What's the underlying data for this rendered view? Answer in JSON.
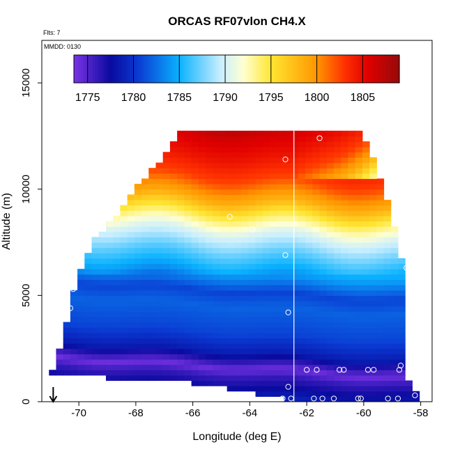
{
  "chart_data": {
    "type": "heatmap",
    "title": "ORCAS RF07vlon CH4.X",
    "annotations": {
      "flights": "Flts: 7",
      "date": "MMDD: 0130"
    },
    "xlabel": "Longitude (deg E)",
    "ylabel": "Altitude (m)",
    "xlim": [
      -71.3,
      -57.6
    ],
    "ylim": [
      0,
      17000
    ],
    "x_ticks": [
      -70,
      -68,
      -66,
      -64,
      -62,
      -60,
      -58
    ],
    "y_ticks": [
      0,
      5000,
      10000,
      15000
    ],
    "colorbar": {
      "min": 1773.5,
      "max": 1809.0,
      "ticks": [
        1775,
        1780,
        1785,
        1790,
        1795,
        1800,
        1805
      ],
      "stops": [
        {
          "value": 1773.5,
          "color": "#7a33e6"
        },
        {
          "value": 1777.5,
          "color": "#0a0a9e"
        },
        {
          "value": 1780.5,
          "color": "#0a3ad2"
        },
        {
          "value": 1785.0,
          "color": "#0ab2ff"
        },
        {
          "value": 1789.5,
          "color": "#c8eeff"
        },
        {
          "value": 1792.0,
          "color": "#ffffd2"
        },
        {
          "value": 1795.0,
          "color": "#ffe632"
        },
        {
          "value": 1800.0,
          "color": "#ff9600"
        },
        {
          "value": 1803.0,
          "color": "#ff3200"
        },
        {
          "value": 1805.5,
          "color": "#e10000"
        },
        {
          "value": 1809.0,
          "color": "#960a0a"
        }
      ],
      "placement": "top"
    },
    "vertical_line_x": -62.45,
    "arrow_x": -70.9,
    "envelope_left": [
      {
        "y": 1300,
        "x": -71.0
      },
      {
        "y": 1800,
        "x": -70.8
      },
      {
        "y": 3000,
        "x": -70.55
      },
      {
        "y": 4300,
        "x": -70.3
      },
      {
        "y": 5600,
        "x": -70.1
      },
      {
        "y": 6400,
        "x": -69.85
      },
      {
        "y": 7200,
        "x": -69.6
      },
      {
        "y": 7800,
        "x": -69.3
      },
      {
        "y": 8400,
        "x": -68.9
      },
      {
        "y": 9000,
        "x": -68.5
      },
      {
        "y": 9800,
        "x": -68.1
      },
      {
        "y": 10500,
        "x": -67.6
      },
      {
        "y": 11200,
        "x": -67.2
      },
      {
        "y": 11800,
        "x": -66.8
      },
      {
        "y": 12500,
        "x": -66.45
      },
      {
        "y": 12900,
        "x": -66.35
      }
    ],
    "envelope_right": [
      {
        "y": 300,
        "x": -58.15
      },
      {
        "y": 900,
        "x": -58.5
      },
      {
        "y": 3000,
        "x": -58.55
      },
      {
        "y": 5000,
        "x": -58.6
      },
      {
        "y": 6500,
        "x": -58.65
      },
      {
        "y": 7300,
        "x": -58.8
      },
      {
        "y": 8200,
        "x": -58.95
      },
      {
        "y": 9500,
        "x": -59.2
      },
      {
        "y": 10500,
        "x": -59.45
      },
      {
        "y": 11500,
        "x": -59.75
      },
      {
        "y": 12500,
        "x": -60.0
      }
    ],
    "bottom_steps": [
      {
        "x": -71.0,
        "y": 1300
      },
      {
        "x": -69.0,
        "y": 1100
      },
      {
        "x": -67.8,
        "y": 900
      },
      {
        "x": -66.0,
        "y": 700
      },
      {
        "x": -64.8,
        "y": 500
      },
      {
        "x": -63.8,
        "y": 300
      },
      {
        "x": -62.8,
        "y": 0
      }
    ],
    "top_y": 12500,
    "profile": [
      {
        "alt": 0,
        "value": 1779.5
      },
      {
        "alt": 1200,
        "value": 1776.0
      },
      {
        "alt": 1600,
        "value": 1774.0
      },
      {
        "alt": 2300,
        "value": 1778.5
      },
      {
        "alt": 3200,
        "value": 1780.8
      },
      {
        "alt": 4500,
        "value": 1782.0
      },
      {
        "alt": 5200,
        "value": 1780.8
      },
      {
        "alt": 6000,
        "value": 1784.0
      },
      {
        "alt": 7000,
        "value": 1787.0
      },
      {
        "alt": 8000,
        "value": 1790.5
      },
      {
        "alt": 8800,
        "value": 1794.5
      },
      {
        "alt": 9500,
        "value": 1798.5
      },
      {
        "alt": 10500,
        "value": 1802.5
      },
      {
        "alt": 11500,
        "value": 1804.5
      },
      {
        "alt": 12500,
        "value": 1806.0
      },
      {
        "alt": 13000,
        "value": 1807.5
      }
    ],
    "samples": [
      {
        "x": -70.9,
        "y": 1700
      },
      {
        "x": -70.3,
        "y": 4400
      },
      {
        "x": -70.2,
        "y": 5300
      },
      {
        "x": -63.9,
        "y": 8100
      },
      {
        "x": -64.7,
        "y": 8700
      },
      {
        "x": -62.75,
        "y": 11400
      },
      {
        "x": -61.55,
        "y": 12400
      },
      {
        "x": -62.75,
        "y": 6900
      },
      {
        "x": -62.65,
        "y": 4200
      },
      {
        "x": -62.65,
        "y": 700
      },
      {
        "x": -62.85,
        "y": 150
      },
      {
        "x": -62.55,
        "y": 150
      },
      {
        "x": -62.0,
        "y": 1500
      },
      {
        "x": -61.65,
        "y": 1500
      },
      {
        "x": -61.75,
        "y": 150
      },
      {
        "x": -61.45,
        "y": 150
      },
      {
        "x": -61.05,
        "y": 150
      },
      {
        "x": -60.85,
        "y": 1500
      },
      {
        "x": -60.7,
        "y": 1500
      },
      {
        "x": -60.2,
        "y": 150
      },
      {
        "x": -60.1,
        "y": 150
      },
      {
        "x": -59.85,
        "y": 1500
      },
      {
        "x": -59.65,
        "y": 1500
      },
      {
        "x": -59.15,
        "y": 150
      },
      {
        "x": -58.8,
        "y": 150
      },
      {
        "x": -58.75,
        "y": 1500
      },
      {
        "x": -58.7,
        "y": 1700
      },
      {
        "x": -58.5,
        "y": 6300
      },
      {
        "x": -58.2,
        "y": 300
      }
    ]
  }
}
